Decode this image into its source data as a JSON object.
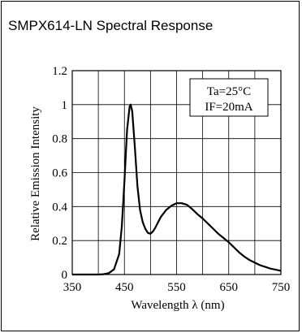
{
  "title": "SMPX614-LN Spectral Response",
  "chart_data": {
    "type": "line",
    "xlabel": "Wavelength λ (nm)",
    "ylabel": "Relative Emission Intensity",
    "xlim": [
      350,
      750
    ],
    "ylim": [
      0,
      1.2
    ],
    "xticks": [
      350,
      450,
      550,
      650,
      750
    ],
    "yticks": [
      0,
      0.2,
      0.4,
      0.6,
      0.8,
      1,
      1.2
    ],
    "xtick_labels": [
      "350",
      "450",
      "550",
      "650",
      "750"
    ],
    "ytick_labels": [
      "0",
      "0.2",
      "0.4",
      "0.6",
      "0.8",
      "1",
      "1.2"
    ],
    "grid": true,
    "annotation": [
      "Ta=25°C",
      "IF=20mA"
    ],
    "series": [
      {
        "x": [
          350,
          400,
          410,
          420,
          430,
          440,
          445,
          450,
          455,
          460,
          462,
          465,
          470,
          475,
          480,
          485,
          490,
          495,
          500,
          505,
          510,
          520,
          530,
          540,
          550,
          560,
          570,
          580,
          590,
          600,
          610,
          620,
          630,
          640,
          650,
          660,
          670,
          680,
          690,
          700,
          710,
          720,
          730,
          740,
          750
        ],
        "y": [
          0,
          0,
          0.002,
          0.008,
          0.03,
          0.12,
          0.28,
          0.55,
          0.85,
          0.99,
          1.0,
          0.96,
          0.75,
          0.52,
          0.38,
          0.31,
          0.27,
          0.245,
          0.24,
          0.255,
          0.28,
          0.34,
          0.38,
          0.405,
          0.42,
          0.42,
          0.41,
          0.385,
          0.355,
          0.33,
          0.3,
          0.27,
          0.24,
          0.215,
          0.19,
          0.16,
          0.13,
          0.105,
          0.085,
          0.07,
          0.055,
          0.045,
          0.035,
          0.028,
          0.022
        ]
      }
    ]
  }
}
